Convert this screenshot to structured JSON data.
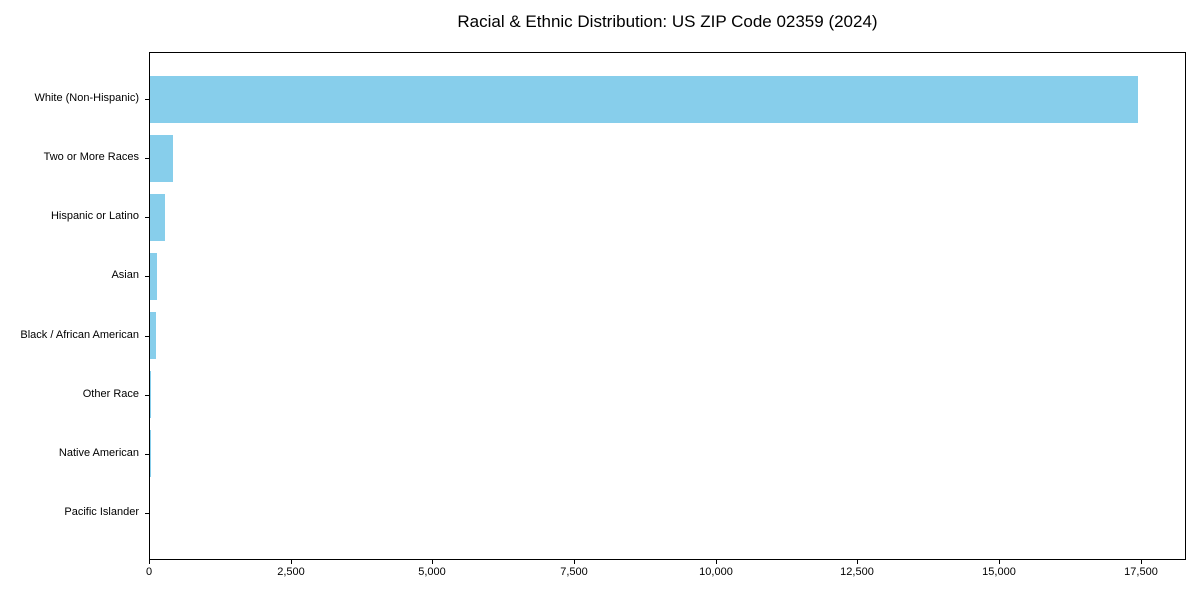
{
  "chart_data": {
    "type": "bar",
    "orientation": "horizontal",
    "title": "Racial & Ethnic Distribution: US ZIP Code 02359 (2024)",
    "categories": [
      "White (Non-Hispanic)",
      "Two or More Races",
      "Hispanic or Latino",
      "Asian",
      "Black / African American",
      "Other Race",
      "Native American",
      "Pacific Islander"
    ],
    "values": [
      17430,
      410,
      265,
      120,
      105,
      18,
      4,
      0
    ],
    "xlabel": "",
    "ylabel": "",
    "xlim": [
      0,
      18300
    ],
    "x_ticks": [
      0,
      2500,
      5000,
      7500,
      10000,
      12500,
      15000,
      17500
    ],
    "x_tick_labels": [
      "0",
      "2,500",
      "5,000",
      "7,500",
      "10,000",
      "12,500",
      "15,000",
      "17,500"
    ],
    "bar_color": "#87CEEB",
    "spine_color": "#000000",
    "text_color": "#000000",
    "grid": false,
    "legend": null
  }
}
